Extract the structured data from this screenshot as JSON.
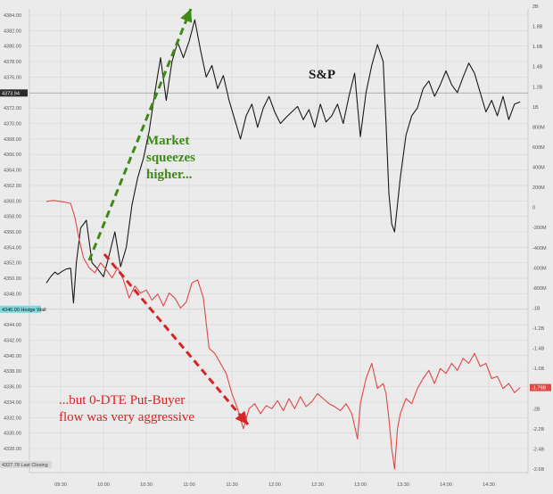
{
  "chart_data": {
    "type": "line",
    "x_ticks": [
      "09:30",
      "10:00",
      "10:30",
      "11:00",
      "11:30",
      "12:00",
      "12:30",
      "13:00",
      "13:30",
      "14:00",
      "14:30"
    ],
    "left_axis": {
      "ticks": [
        "4384.00",
        "4382.00",
        "4380.00",
        "4378.00",
        "4376.00",
        "4374.00",
        "4372.00",
        "4370.00",
        "4368.00",
        "4366.00",
        "4364.00",
        "4362.00",
        "4360.00",
        "4358.00",
        "4356.00",
        "4354.00",
        "4352.00",
        "4350.00",
        "4348.00",
        "4346.00",
        "4344.00",
        "4342.00",
        "4340.00",
        "4338.00",
        "4336.00",
        "4334.00",
        "4332.00",
        "4330.00",
        "4328.00"
      ],
      "ylim": [
        4327.78,
        4385.5
      ]
    },
    "right_axis": {
      "ticks": [
        "2B",
        "1.8B",
        "1.6B",
        "1.4B",
        "1.2B",
        "1B",
        "800M",
        "600M",
        "400M",
        "200M",
        "0",
        "-200M",
        "-400M",
        "-600M",
        "-800M",
        "-1B",
        "-1.2B",
        "-1.4B",
        "-1.6B",
        "-1.8B",
        "-2B",
        "-2.2B",
        "-2.4B",
        "-2.6B"
      ],
      "ylim": [
        -2.8,
        2.1
      ]
    },
    "series": [
      {
        "name": "S&P",
        "axis": "left",
        "color": "#1a1a1a",
        "x": [
          "09:20",
          "09:23",
          "09:26",
          "09:28",
          "09:31",
          "09:34",
          "09:37",
          "09:39",
          "09:41",
          "09:44",
          "09:48",
          "09:52",
          "09:56",
          "10:00",
          "10:04",
          "10:08",
          "10:12",
          "10:16",
          "10:20",
          "10:24",
          "10:28",
          "10:32",
          "10:36",
          "10:40",
          "10:44",
          "10:48",
          "10:52",
          "10:56",
          "11:00",
          "11:04",
          "11:08",
          "11:12",
          "11:16",
          "11:20",
          "11:24",
          "11:28",
          "11:32",
          "11:36",
          "11:40",
          "11:44",
          "11:48",
          "11:52",
          "11:56",
          "12:00",
          "12:04",
          "12:08",
          "12:12",
          "12:16",
          "12:20",
          "12:24",
          "12:28",
          "12:32",
          "12:36",
          "12:40",
          "12:44",
          "12:48",
          "12:52",
          "12:56",
          "13:00",
          "13:04",
          "13:08",
          "13:12",
          "13:16",
          "13:18",
          "13:20",
          "13:22",
          "13:24",
          "13:28",
          "13:32",
          "13:36",
          "13:40",
          "13:44",
          "13:48",
          "13:52",
          "13:56",
          "14:00",
          "14:04",
          "14:08",
          "14:12",
          "14:16",
          "14:20",
          "14:24",
          "14:28",
          "14:32",
          "14:36",
          "14:40",
          "14:44",
          "14:48",
          "14:52"
        ],
        "y": [
          4349.4,
          4350.2,
          4350.8,
          4350.5,
          4350.9,
          4351.2,
          4351.3,
          4346.8,
          4352.0,
          4356.5,
          4357.5,
          4352.0,
          4351.2,
          4350.2,
          4353.0,
          4356.0,
          4351.5,
          4354.0,
          4359.5,
          4363.0,
          4365.5,
          4369.0,
          4374.0,
          4378.5,
          4373.0,
          4378.0,
          4380.5,
          4378.5,
          4380.6,
          4383.4,
          4379.5,
          4376.0,
          4377.5,
          4374.5,
          4376.2,
          4373.0,
          4370.5,
          4368.0,
          4371.0,
          4372.5,
          4369.5,
          4372.0,
          4373.5,
          4371.5,
          4370.0,
          4370.8,
          4371.5,
          4372.2,
          4370.5,
          4371.8,
          4369.5,
          4372.5,
          4370.2,
          4371.0,
          4372.5,
          4370.0,
          4373.5,
          4376.5,
          4368.3,
          4374.0,
          4377.5,
          4380.2,
          4378.0,
          4370.0,
          4361.0,
          4357.0,
          4356.0,
          4363.0,
          4368.5,
          4371.0,
          4372.0,
          4374.5,
          4375.5,
          4373.5,
          4375.0,
          4376.8,
          4375.0,
          4374.0,
          4376.0,
          4377.8,
          4376.5,
          4374.0,
          4371.5,
          4373.0,
          4371.0,
          4373.5,
          4370.5,
          4372.5,
          4372.8
        ]
      },
      {
        "name": "0-DTE Put-Buyer flow",
        "axis": "right",
        "color": "#e04848",
        "x": [
          "09:20",
          "09:25",
          "09:30",
          "09:34",
          "09:37",
          "09:40",
          "09:43",
          "09:46",
          "09:50",
          "09:54",
          "09:58",
          "10:02",
          "10:06",
          "10:10",
          "10:14",
          "10:18",
          "10:22",
          "10:26",
          "10:30",
          "10:34",
          "10:38",
          "10:42",
          "10:46",
          "10:50",
          "10:54",
          "10:58",
          "11:02",
          "11:06",
          "11:10",
          "11:14",
          "11:18",
          "11:22",
          "11:26",
          "11:30",
          "11:34",
          "11:38",
          "11:42",
          "11:46",
          "11:50",
          "11:54",
          "11:58",
          "12:02",
          "12:06",
          "12:10",
          "12:14",
          "12:18",
          "12:22",
          "12:26",
          "12:30",
          "12:34",
          "12:38",
          "12:42",
          "12:46",
          "12:50",
          "12:54",
          "12:58",
          "13:00",
          "13:04",
          "13:08",
          "13:12",
          "13:16",
          "13:18",
          "13:20",
          "13:22",
          "13:24",
          "13:26",
          "13:28",
          "13:32",
          "13:36",
          "13:40",
          "13:44",
          "13:48",
          "13:52",
          "13:56",
          "14:00",
          "14:04",
          "14:08",
          "14:12",
          "14:16",
          "14:20",
          "14:24",
          "14:28",
          "14:32",
          "14:36",
          "14:40",
          "14:44",
          "14:48",
          "14:52"
        ],
        "y": [
          0.06,
          0.07,
          0.06,
          0.05,
          0.04,
          -0.1,
          -0.32,
          -0.5,
          -0.6,
          -0.65,
          -0.55,
          -0.62,
          -0.7,
          -0.6,
          -0.72,
          -0.9,
          -0.78,
          -0.85,
          -0.82,
          -0.92,
          -0.86,
          -0.98,
          -0.85,
          -0.9,
          -1.0,
          -0.94,
          -0.75,
          -0.72,
          -0.9,
          -1.4,
          -1.45,
          -1.55,
          -1.65,
          -1.85,
          -2.0,
          -2.2,
          -2.0,
          -1.95,
          -2.05,
          -1.97,
          -2.0,
          -1.92,
          -2.02,
          -1.9,
          -2.0,
          -1.88,
          -1.98,
          -1.93,
          -1.85,
          -1.9,
          -1.95,
          -1.98,
          -2.02,
          -1.95,
          -2.05,
          -2.3,
          -1.95,
          -1.7,
          -1.55,
          -1.8,
          -1.75,
          -1.85,
          -2.1,
          -2.4,
          -2.6,
          -2.2,
          -2.05,
          -1.9,
          -1.95,
          -1.8,
          -1.7,
          -1.62,
          -1.75,
          -1.6,
          -1.65,
          -1.55,
          -1.62,
          -1.5,
          -1.55,
          -1.45,
          -1.58,
          -1.55,
          -1.7,
          -1.68,
          -1.8,
          -1.75,
          -1.84,
          -1.79
        ]
      }
    ],
    "reference_lines": [
      {
        "axis": "left",
        "value": 4373.94,
        "label": "4373.94"
      },
      {
        "axis": "left",
        "value": 4346.0,
        "label": "4346.00 Hedge Wall"
      }
    ],
    "right_last_label": "-1.79B",
    "bottom_left_label": "4327.78  Last Closing",
    "annotations": {
      "sp": "S&P",
      "green": [
        "Market",
        "squeezes",
        "higher..."
      ],
      "red": [
        "...but 0-DTE Put-Buyer",
        "flow was very aggressive"
      ]
    },
    "grid": true,
    "colors": {
      "background": "#ebebeb",
      "green_arrow": "#3d8a14",
      "red_arrow": "#d42626",
      "hedge_tag": "#7fd8dc"
    }
  }
}
